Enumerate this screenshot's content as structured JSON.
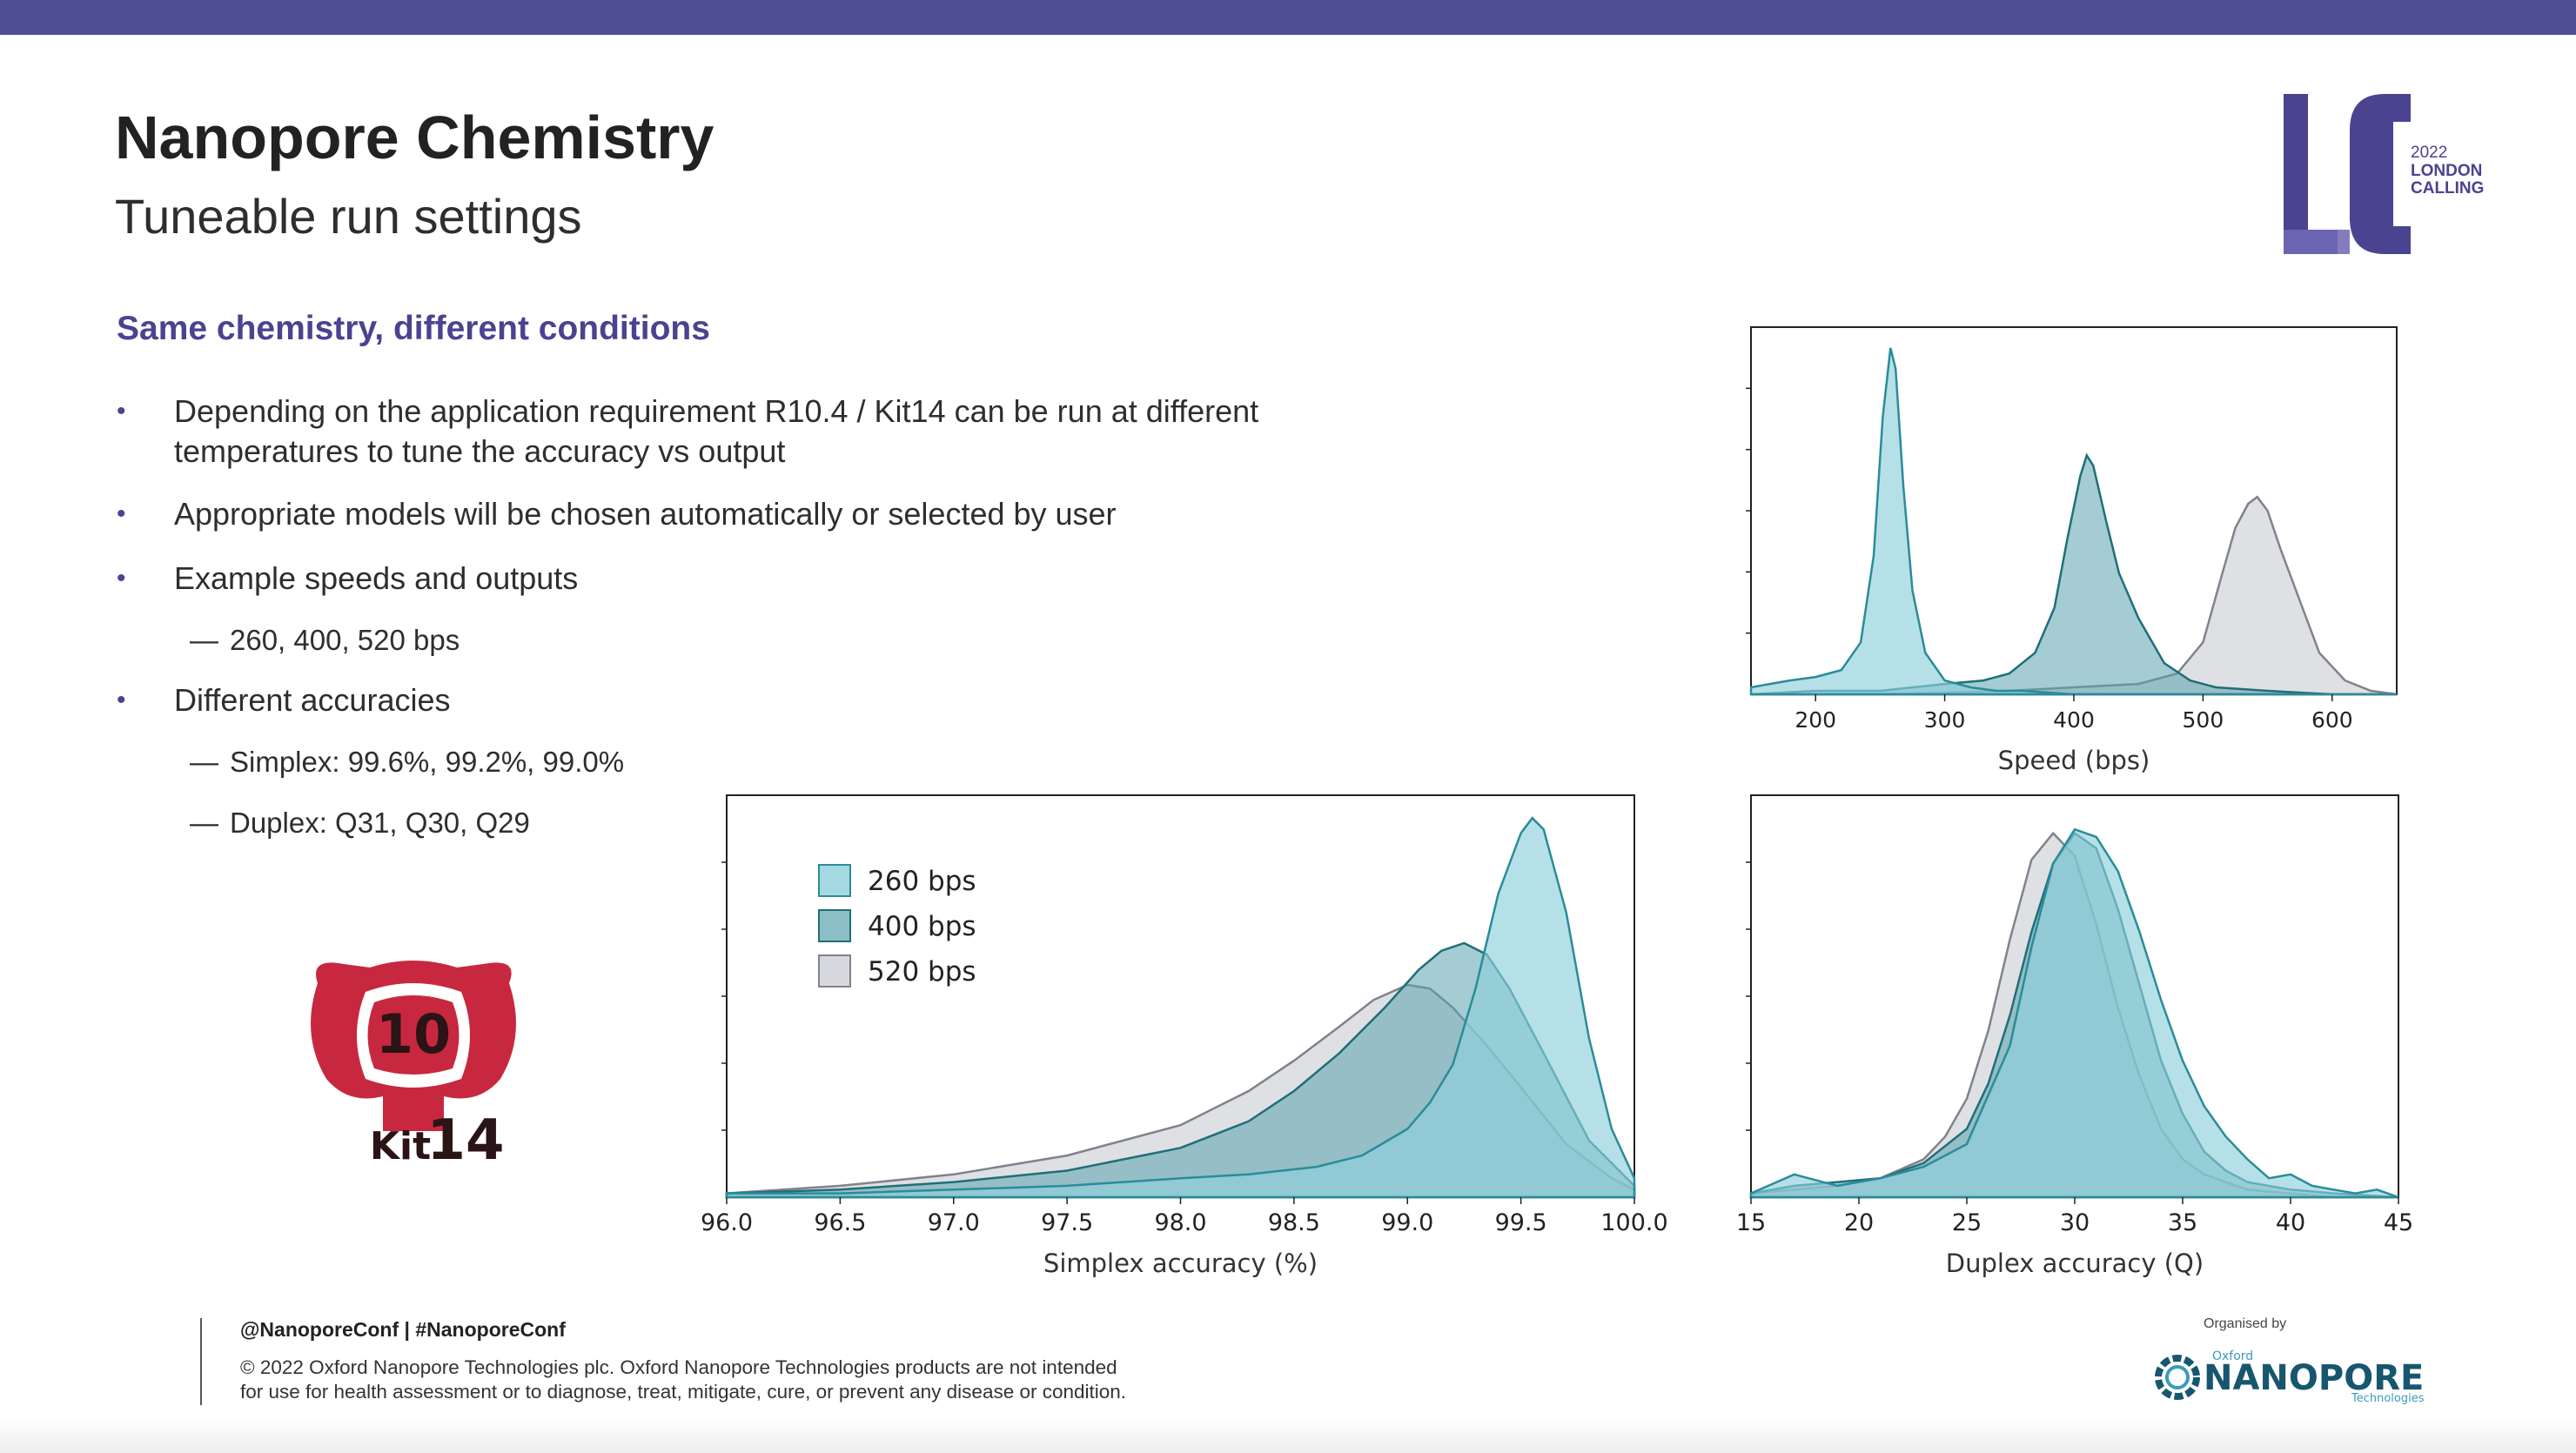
{
  "slide": {
    "title": "Nanopore Chemistry",
    "subtitle": "Tuneable run settings",
    "section_heading": "Same chemistry, different conditions",
    "bullets": [
      {
        "lines": [
          "Depending on the application requirement R10.4 / Kit14 can be run at different",
          "temperatures to tune the accuracy vs output"
        ]
      },
      {
        "lines": [
          "Appropriate models will be chosen automatically or selected by user"
        ]
      },
      {
        "lines": [
          "Example speeds and outputs"
        ]
      },
      {
        "lines": [
          "Different accuracies"
        ]
      }
    ],
    "sub_bullets": {
      "speeds": "260, 400, 520 bps",
      "simplex": "Simplex: 99.6%, 99.2%, 99.0%",
      "duplex": "Duplex: Q31, Q30, Q29"
    },
    "bullet_marker": "•",
    "sub_marker": "—"
  },
  "logos": {
    "kit_logo": {
      "number": "10",
      "kit_word": "Kit",
      "kit_number": "14",
      "color": "#c8283f"
    },
    "event_logo": {
      "letters": "LC",
      "year": "2022",
      "line1": "LONDON",
      "line2": "CALLING",
      "color": "#4a4390"
    },
    "org_logo": {
      "prefix": "Oxford",
      "name": "NANOPORE",
      "suffix": "Technologies",
      "color": "#17566f"
    }
  },
  "footer": {
    "handle": "@NanoporeConf | #NanoporeConf",
    "copyright_line1": "© 2022 Oxford Nanopore Technologies plc. Oxford Nanopore Technologies products are not intended",
    "copyright_line2": "for use for health assessment or to diagnose, treat, mitigate, cure, or prevent any disease or condition.",
    "organised_by": "Organised by"
  },
  "colors": {
    "topbar": "#4d4d94",
    "accent": "#4a4390",
    "s260": "#8fd0db",
    "s400": "#5aa3ad",
    "s520": "#c9cbd2"
  },
  "chart_data": [
    {
      "type": "area",
      "xlabel": "Speed (bps)",
      "ylabel": "",
      "xlim": [
        150,
        650
      ],
      "xticks": [
        200,
        300,
        400,
        500,
        600
      ],
      "series": [
        {
          "name": "260 bps",
          "x": [
            150,
            180,
            200,
            220,
            235,
            245,
            252,
            258,
            262,
            268,
            275,
            285,
            300,
            320,
            340,
            360,
            400,
            450,
            500,
            550,
            600,
            650
          ],
          "y": [
            0.02,
            0.04,
            0.05,
            0.07,
            0.15,
            0.4,
            0.8,
            1.0,
            0.94,
            0.6,
            0.3,
            0.12,
            0.04,
            0.02,
            0.01,
            0.01,
            0.0,
            0.0,
            0.0,
            0.0,
            0.0,
            0.0
          ]
        },
        {
          "name": "400 bps",
          "x": [
            150,
            200,
            250,
            300,
            330,
            350,
            370,
            385,
            395,
            405,
            410,
            415,
            425,
            435,
            450,
            470,
            490,
            510,
            550,
            600,
            650
          ],
          "y": [
            0.0,
            0.01,
            0.01,
            0.03,
            0.04,
            0.06,
            0.12,
            0.25,
            0.45,
            0.63,
            0.69,
            0.66,
            0.5,
            0.35,
            0.22,
            0.09,
            0.04,
            0.02,
            0.01,
            0.0,
            0.0
          ]
        },
        {
          "name": "520 bps",
          "x": [
            150,
            250,
            350,
            400,
            450,
            480,
            500,
            515,
            525,
            535,
            542,
            550,
            560,
            575,
            590,
            610,
            630,
            650
          ],
          "y": [
            0.0,
            0.0,
            0.01,
            0.02,
            0.03,
            0.06,
            0.15,
            0.35,
            0.48,
            0.55,
            0.57,
            0.53,
            0.42,
            0.27,
            0.12,
            0.04,
            0.01,
            0.0
          ]
        }
      ]
    },
    {
      "type": "area",
      "xlabel": "Simplex accuracy (%)",
      "ylabel": "",
      "xlim": [
        96.0,
        100.0
      ],
      "xticks": [
        "96.0",
        "96.5",
        "97.0",
        "97.5",
        "98.0",
        "98.5",
        "99.0",
        "99.5",
        "100.0"
      ],
      "legend": "upper-left",
      "series": [
        {
          "name": "260 bps",
          "x": [
            96.0,
            96.5,
            97.0,
            97.5,
            98.0,
            98.3,
            98.6,
            98.8,
            99.0,
            99.1,
            99.2,
            99.3,
            99.4,
            99.5,
            99.55,
            99.6,
            99.7,
            99.8,
            99.9,
            100.0
          ],
          "y": [
            0.01,
            0.01,
            0.02,
            0.03,
            0.05,
            0.06,
            0.08,
            0.11,
            0.18,
            0.25,
            0.35,
            0.55,
            0.8,
            0.96,
            1.0,
            0.97,
            0.75,
            0.42,
            0.18,
            0.05
          ]
        },
        {
          "name": "400 bps",
          "x": [
            96.0,
            96.5,
            97.0,
            97.5,
            98.0,
            98.3,
            98.5,
            98.7,
            98.9,
            99.05,
            99.15,
            99.25,
            99.35,
            99.45,
            99.6,
            99.8,
            100.0
          ],
          "y": [
            0.01,
            0.02,
            0.04,
            0.07,
            0.13,
            0.2,
            0.28,
            0.38,
            0.5,
            0.6,
            0.65,
            0.67,
            0.64,
            0.55,
            0.38,
            0.15,
            0.03
          ]
        },
        {
          "name": "520 bps",
          "x": [
            96.0,
            96.5,
            97.0,
            97.5,
            98.0,
            98.3,
            98.5,
            98.7,
            98.85,
            99.0,
            99.1,
            99.2,
            99.35,
            99.5,
            99.7,
            99.9,
            100.0
          ],
          "y": [
            0.01,
            0.03,
            0.06,
            0.11,
            0.19,
            0.28,
            0.36,
            0.45,
            0.52,
            0.56,
            0.55,
            0.5,
            0.4,
            0.29,
            0.14,
            0.05,
            0.02
          ]
        }
      ]
    },
    {
      "type": "area",
      "xlabel": "Duplex accuracy (Q)",
      "ylabel": "",
      "xlim": [
        15,
        45
      ],
      "xticks": [
        15,
        20,
        25,
        30,
        35,
        40,
        45
      ],
      "series": [
        {
          "name": "260 bps",
          "x": [
            15,
            17,
            19,
            21,
            23,
            25,
            27,
            28,
            29,
            30,
            31,
            32,
            33,
            34,
            35,
            36,
            37,
            38,
            39,
            40,
            41,
            42,
            43,
            44,
            45
          ],
          "y": [
            0.01,
            0.06,
            0.03,
            0.05,
            0.08,
            0.14,
            0.4,
            0.66,
            0.88,
            0.97,
            0.95,
            0.86,
            0.7,
            0.52,
            0.36,
            0.24,
            0.16,
            0.1,
            0.05,
            0.06,
            0.03,
            0.02,
            0.01,
            0.02,
            0.0
          ]
        },
        {
          "name": "400 bps",
          "x": [
            15,
            17,
            19,
            21,
            23,
            25,
            26,
            27,
            28,
            29,
            30,
            31,
            32,
            33,
            34,
            35,
            36,
            37,
            38,
            40,
            42,
            45
          ],
          "y": [
            0.01,
            0.03,
            0.04,
            0.05,
            0.09,
            0.18,
            0.3,
            0.48,
            0.7,
            0.88,
            0.96,
            0.92,
            0.76,
            0.56,
            0.36,
            0.22,
            0.12,
            0.07,
            0.04,
            0.02,
            0.01,
            0.0
          ]
        },
        {
          "name": "520 bps",
          "x": [
            15,
            17,
            19,
            21,
            23,
            24,
            25,
            26,
            27,
            28,
            29,
            30,
            31,
            32,
            33,
            34,
            35,
            36,
            38,
            40,
            42,
            45
          ],
          "y": [
            0.01,
            0.02,
            0.03,
            0.05,
            0.1,
            0.16,
            0.26,
            0.44,
            0.68,
            0.89,
            0.96,
            0.9,
            0.72,
            0.5,
            0.32,
            0.18,
            0.1,
            0.06,
            0.02,
            0.01,
            0.0,
            0.0
          ]
        }
      ]
    }
  ]
}
